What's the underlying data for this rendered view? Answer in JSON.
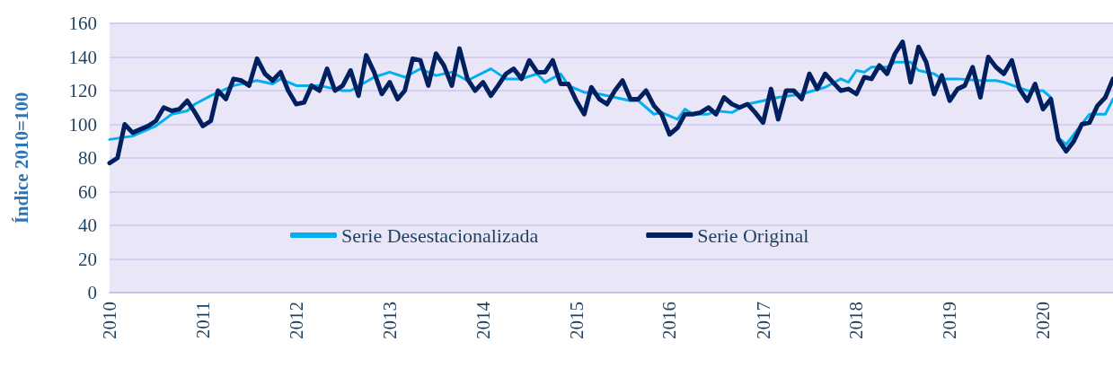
{
  "chart_data": {
    "type": "line",
    "ylabel": "Índice 2010=100",
    "x": [
      "2010-01",
      "2010-02",
      "2010-03",
      "2010-04",
      "2010-05",
      "2010-06",
      "2010-07",
      "2010-08",
      "2010-09",
      "2010-10",
      "2010-11",
      "2010-12",
      "2011-01",
      "2011-02",
      "2011-03",
      "2011-04",
      "2011-05",
      "2011-06",
      "2011-07",
      "2011-08",
      "2011-09",
      "2011-10",
      "2011-11",
      "2011-12",
      "2012-01",
      "2012-02",
      "2012-03",
      "2012-04",
      "2012-05",
      "2012-06",
      "2012-07",
      "2012-08",
      "2012-09",
      "2012-10",
      "2012-11",
      "2012-12",
      "2013-01",
      "2013-02",
      "2013-03",
      "2013-04",
      "2013-05",
      "2013-06",
      "2013-07",
      "2013-08",
      "2013-09",
      "2013-10",
      "2013-11",
      "2013-12",
      "2014-01",
      "2014-02",
      "2014-03",
      "2014-04",
      "2014-05",
      "2014-06",
      "2014-07",
      "2014-08",
      "2014-09",
      "2014-10",
      "2014-11",
      "2014-12",
      "2015-01",
      "2015-02",
      "2015-03",
      "2015-04",
      "2015-05",
      "2015-06",
      "2015-07",
      "2015-08",
      "2015-09",
      "2015-10",
      "2015-11",
      "2015-12",
      "2016-01",
      "2016-02",
      "2016-03",
      "2016-04",
      "2016-05",
      "2016-06",
      "2016-07",
      "2016-08",
      "2016-09",
      "2016-10",
      "2016-11",
      "2016-12",
      "2017-01",
      "2017-02",
      "2017-03",
      "2017-04",
      "2017-05",
      "2017-06",
      "2017-07",
      "2017-08",
      "2017-09",
      "2017-10",
      "2017-11",
      "2017-12",
      "2018-01",
      "2018-02",
      "2018-03",
      "2018-04",
      "2018-05",
      "2018-06",
      "2018-07",
      "2018-08",
      "2018-09",
      "2018-10",
      "2018-11",
      "2018-12",
      "2019-01",
      "2019-02",
      "2019-03",
      "2019-04",
      "2019-05",
      "2019-06",
      "2019-07",
      "2019-08",
      "2019-09",
      "2019-10",
      "2019-11",
      "2019-12",
      "2020-01",
      "2020-02",
      "2020-03",
      "2020-04",
      "2020-05",
      "2020-06",
      "2020-07",
      "2020-08",
      "2020-09",
      "2020-10"
    ],
    "series": [
      {
        "name": "Serie Desestacionalizada",
        "color": "#00b0f0",
        "x": [
          "2010-01",
          "2010-04",
          "2010-07",
          "2010-09",
          "2010-11",
          "2010-12",
          "2011-02",
          "2011-05",
          "2011-08",
          "2011-10",
          "2011-11",
          "2012-01",
          "2012-04",
          "2012-07",
          "2012-08",
          "2012-11",
          "2013-01",
          "2013-03",
          "2013-05",
          "2013-07",
          "2013-09",
          "2013-11",
          "2014-02",
          "2014-04",
          "2014-06",
          "2014-08",
          "2014-09",
          "2014-11",
          "2014-12",
          "2015-02",
          "2015-04",
          "2015-06",
          "2015-08",
          "2015-09",
          "2015-11",
          "2015-12",
          "2016-02",
          "2016-03",
          "2016-04",
          "2016-06",
          "2016-07",
          "2016-09",
          "2016-11",
          "2017-01",
          "2017-03",
          "2017-06",
          "2017-09",
          "2017-11",
          "2017-12",
          "2018-01",
          "2018-02",
          "2018-03",
          "2018-05",
          "2018-06",
          "2018-08",
          "2018-09",
          "2018-11",
          "2018-12",
          "2019-02",
          "2019-05",
          "2019-07",
          "2019-08",
          "2019-11",
          "2020-01",
          "2020-02",
          "2020-03",
          "2020-04",
          "2020-05",
          "2020-07",
          "2020-09",
          "2020-10"
        ],
        "values": [
          91,
          93,
          99,
          106,
          108,
          112,
          117,
          123,
          126,
          124,
          127,
          123,
          123,
          120,
          120,
          128,
          131,
          128,
          133,
          129,
          131,
          126,
          133,
          127,
          127,
          130,
          125,
          130,
          123,
          119,
          118,
          116,
          114,
          114,
          106,
          107,
          103,
          109,
          106,
          106,
          108,
          107,
          112,
          114,
          116,
          118,
          122,
          127,
          125,
          132,
          131,
          134,
          134,
          137,
          137,
          132,
          130,
          127,
          127,
          126,
          126,
          125,
          120,
          120,
          116,
          92,
          88,
          94,
          106,
          106,
          115
        ]
      },
      {
        "name": "Serie Original",
        "color": "#002060",
        "values": [
          77,
          80,
          100,
          95,
          97,
          99,
          102,
          110,
          108,
          109,
          114,
          107,
          99,
          102,
          120,
          115,
          127,
          126,
          123,
          139,
          130,
          126,
          131,
          120,
          112,
          113,
          123,
          120,
          133,
          120,
          123,
          132,
          117,
          141,
          131,
          118,
          125,
          115,
          120,
          139,
          138,
          123,
          142,
          135,
          123,
          145,
          127,
          120,
          125,
          117,
          123,
          130,
          133,
          127,
          138,
          131,
          131,
          138,
          124,
          124,
          114,
          106,
          122,
          115,
          112,
          120,
          126,
          115,
          115,
          120,
          111,
          106,
          94,
          98,
          106,
          106,
          107,
          110,
          106,
          116,
          112,
          110,
          112,
          107,
          101,
          121,
          103,
          120,
          120,
          115,
          130,
          121,
          130,
          125,
          120,
          121,
          118,
          128,
          127,
          135,
          130,
          142,
          149,
          125,
          146,
          137,
          118,
          129,
          114,
          121,
          123,
          134,
          116,
          140,
          134,
          130,
          138,
          121,
          114,
          124,
          109,
          115,
          91,
          84,
          90,
          100,
          101,
          111,
          116,
          127
        ]
      }
    ],
    "xlim": [
      "2010-01",
      "2020-10"
    ],
    "xticks": [
      {
        "value": "2010-01",
        "label": "2010"
      },
      {
        "value": "2011-01",
        "label": "2011"
      },
      {
        "value": "2012-01",
        "label": "2012"
      },
      {
        "value": "2013-01",
        "label": "2013"
      },
      {
        "value": "2014-01",
        "label": "2014"
      },
      {
        "value": "2015-01",
        "label": "2015"
      },
      {
        "value": "2016-01",
        "label": "2016"
      },
      {
        "value": "2017-01",
        "label": "2017"
      },
      {
        "value": "2018-01",
        "label": "2018"
      },
      {
        "value": "2019-01",
        "label": "2019"
      },
      {
        "value": "2020-01",
        "label": "2020"
      }
    ],
    "ylim": [
      0,
      160
    ],
    "yticks": [
      0,
      20,
      40,
      60,
      80,
      100,
      120,
      140,
      160
    ],
    "grid": "y",
    "legend": "bottom",
    "marker": "none",
    "line_style": "solid"
  }
}
